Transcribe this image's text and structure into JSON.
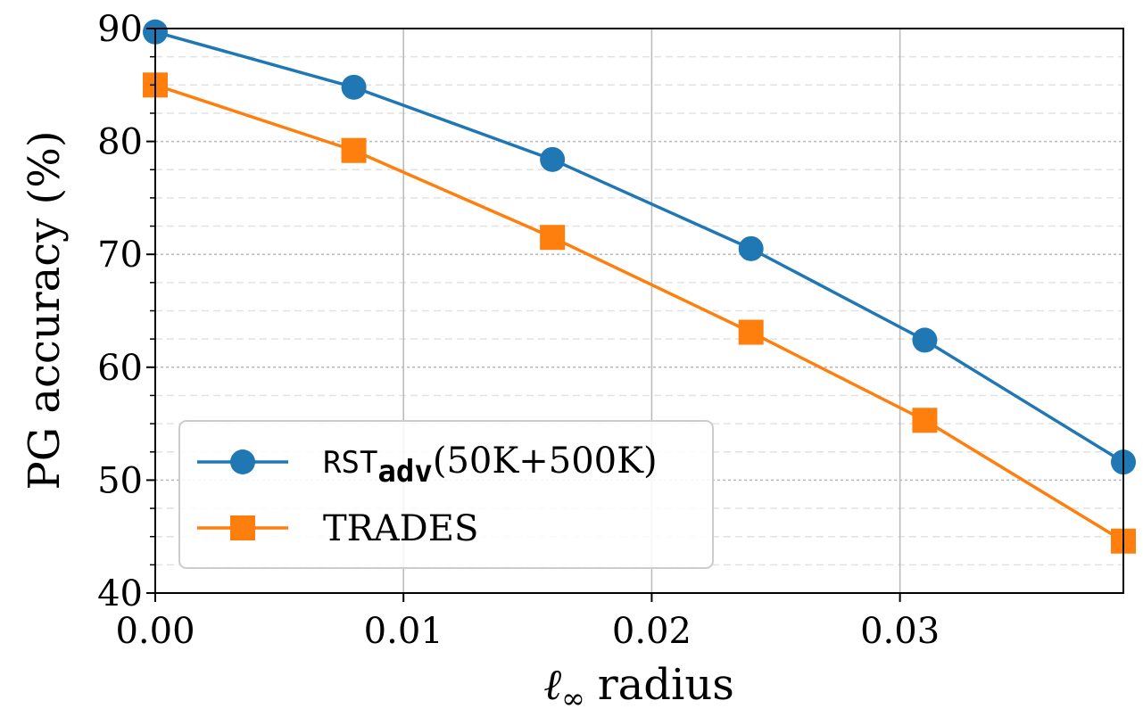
{
  "chart_data": {
    "type": "line",
    "xlabel_symbol": "ℓ",
    "xlabel_subscript": "∞",
    "xlabel_text": "radius",
    "ylabel": "PG accuracy (%)",
    "xlim": [
      0.0,
      0.039
    ],
    "ylim": [
      40,
      90
    ],
    "x": [
      0.0,
      0.008,
      0.016,
      0.024,
      0.031,
      0.039
    ],
    "xticks": [
      "0.00",
      "0.01",
      "0.02",
      "0.03"
    ],
    "yticks": [
      "40",
      "50",
      "60",
      "70",
      "80",
      "90"
    ],
    "grid": true,
    "legend_position": "lower-left",
    "series": [
      {
        "name_main": "RST",
        "name_sub": "adv",
        "name_tail": "(50K+500K)",
        "marker": "circle",
        "color": "#1f77b4",
        "values": [
          89.7,
          84.8,
          78.4,
          70.5,
          62.4,
          51.6
        ]
      },
      {
        "name_main": "TRADES",
        "marker": "square",
        "color": "#ff7f0e",
        "values": [
          85.0,
          79.2,
          71.5,
          63.1,
          55.3,
          44.6
        ]
      }
    ]
  }
}
